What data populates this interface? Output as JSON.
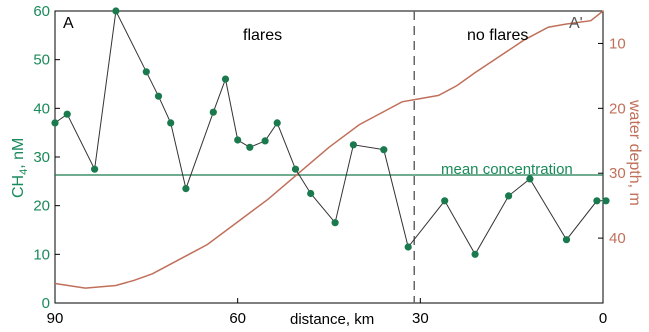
{
  "chart_data": {
    "type": "line",
    "x_axis": {
      "label": "distance, km",
      "range": [
        90,
        0
      ],
      "ticks": [
        90,
        60,
        30,
        0
      ]
    },
    "y_left": {
      "label_main": "CH",
      "label_sub": "4",
      "label_tail": ", nM",
      "range": [
        0,
        60
      ],
      "ticks": [
        0,
        10,
        20,
        30,
        40,
        50,
        60
      ]
    },
    "y_right": {
      "label": "water depth, m",
      "range": [
        5,
        50
      ],
      "inverted": true,
      "ticks": [
        10,
        20,
        30,
        40
      ]
    },
    "series": [
      {
        "axis": "left",
        "color": "#333333",
        "marker_color": "#1a7a4e",
        "x": [
          90,
          88,
          83.5,
          80,
          75,
          73,
          71,
          68.5,
          64,
          62,
          60,
          58,
          55.5,
          53.5,
          50.5,
          48,
          44,
          41,
          36,
          32,
          26,
          21,
          15.5,
          12,
          6,
          1,
          -0.5
        ],
        "y": [
          37,
          38.8,
          27.5,
          60,
          47.5,
          42.5,
          37,
          23.5,
          39.2,
          46,
          33.5,
          32,
          33.3,
          37,
          27.5,
          22.5,
          16.5,
          32.5,
          31.5,
          11.5,
          21,
          10,
          22,
          25.5,
          13,
          21,
          21
        ]
      },
      {
        "axis": "right",
        "color": "#c0705a",
        "x": [
          90,
          85,
          80,
          77,
          74,
          71,
          68,
          65,
          60,
          55,
          50,
          45,
          40,
          36,
          33,
          30,
          27,
          24,
          21,
          17,
          13,
          9,
          6,
          2,
          0
        ],
        "y": [
          47,
          47.7,
          47.3,
          46.5,
          45.5,
          44,
          42.5,
          41,
          37.5,
          34,
          30,
          26,
          22.5,
          20.5,
          19,
          18.5,
          18,
          16.5,
          14.5,
          12,
          9.5,
          7.5,
          7,
          6.5,
          5
        ]
      }
    ],
    "mean_line": {
      "value": 26.3,
      "label": "mean concentration",
      "color": "#1a7a4e"
    },
    "divider": {
      "x": 31
    },
    "annotations": {
      "left_corner": "A",
      "right_corner": "A'",
      "flares": "flares",
      "no_flares": "no flares"
    }
  }
}
